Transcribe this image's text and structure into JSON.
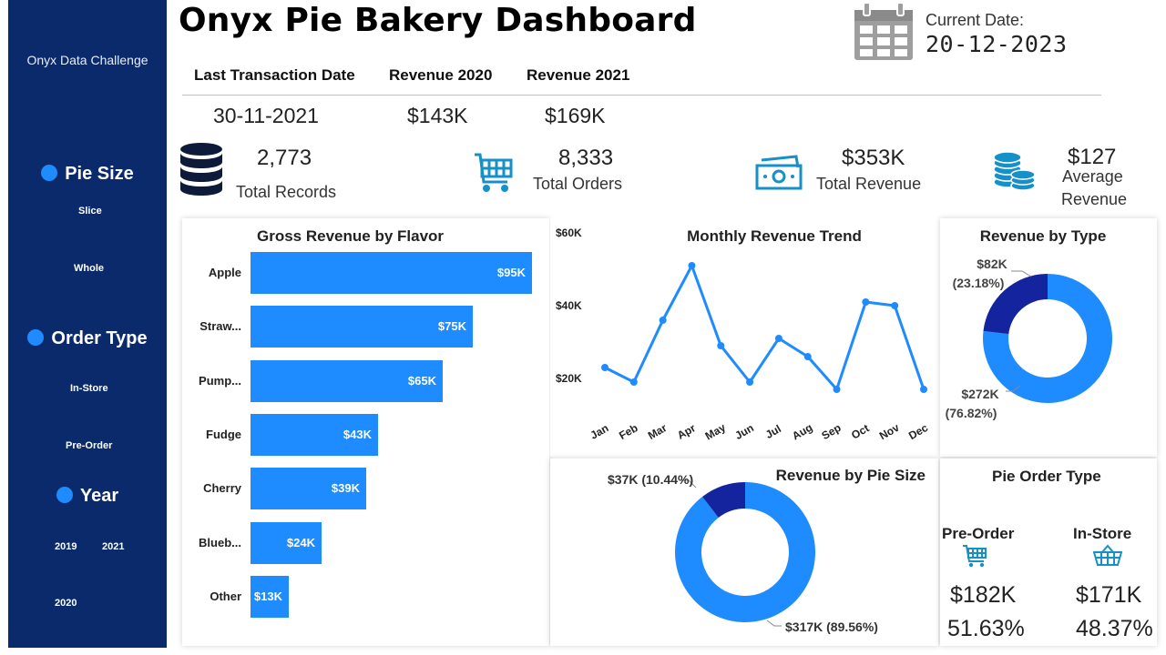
{
  "dashboard": {
    "title": "Onyx Pie Bakery Dashboard",
    "current_date_label": "Current Date:",
    "current_date": "20-12-2023"
  },
  "sidebar": {
    "title": "Onyx Data Challenge",
    "pie_size": {
      "label": "Pie Size",
      "options": [
        "Slice",
        "Whole"
      ]
    },
    "order_type": {
      "label": "Order Type",
      "options": [
        "In-Store",
        "Pre-Order"
      ]
    },
    "year": {
      "label": "Year",
      "options": [
        "2019",
        "2021",
        "2020"
      ]
    }
  },
  "header_stats": {
    "last_transaction": {
      "label": "Last Transaction Date",
      "value": "30-11-2021"
    },
    "revenue_2020": {
      "label": "Revenue 2020",
      "value": "$143K"
    },
    "revenue_2021": {
      "label": "Revenue 2021",
      "value": "$169K"
    }
  },
  "kpis": {
    "records": {
      "value": "2,773",
      "label": "Total Records",
      "icon": "database-icon"
    },
    "orders": {
      "value": "8,333",
      "label": "Total Orders",
      "icon": "cart-icon"
    },
    "revenue": {
      "value": "$353K",
      "label": "Total Revenue",
      "icon": "money-icon"
    },
    "avg": {
      "value": "$127",
      "label_line1": "Average",
      "label_line2": "Revenue",
      "icon": "coins-icon"
    }
  },
  "colors": {
    "accent": "#1e8bff",
    "dark_accent": "#14249e",
    "sidebar": "#0a2a6c"
  },
  "chart_data": [
    {
      "type": "bar",
      "title": "Gross Revenue by Flavor",
      "orientation": "horizontal",
      "categories": [
        "Apple",
        "Straw...",
        "Pump...",
        "Fudge",
        "Cherry",
        "Blueb...",
        "Other"
      ],
      "values": [
        95,
        75,
        65,
        43,
        39,
        24,
        13
      ],
      "labels": [
        "$95K",
        "$75K",
        "$65K",
        "$43K",
        "$39K",
        "$24K",
        "$13K"
      ],
      "unit": "$K"
    },
    {
      "type": "line",
      "title": "Monthly Revenue Trend",
      "x": [
        "Jan",
        "Feb",
        "Mar",
        "Apr",
        "May",
        "Jun",
        "Jul",
        "Aug",
        "Sep",
        "Oct",
        "Nov",
        "Dec"
      ],
      "y": [
        23,
        19,
        36,
        51,
        29,
        19,
        31,
        26,
        17,
        41,
        40,
        17
      ],
      "yticks": [
        "$60K",
        "$40K",
        "$20K"
      ],
      "ylim": [
        10,
        60
      ],
      "unit": "$K"
    },
    {
      "type": "pie",
      "title": "Revenue by Type",
      "slices": [
        {
          "label": "$82K",
          "pct": "(23.18%)",
          "value": 23.18,
          "color": "#14249e"
        },
        {
          "label": "$272K",
          "pct": "(76.82%)",
          "value": 76.82,
          "color": "#1e8bff"
        }
      ]
    },
    {
      "type": "pie",
      "title": "Revenue by Pie Size",
      "slices": [
        {
          "label": "$37K (10.44%)",
          "value": 10.44,
          "color": "#14249e"
        },
        {
          "label": "$317K (89.56%)",
          "value": 89.56,
          "color": "#1e8bff"
        }
      ]
    }
  ],
  "pie_order_type": {
    "title": "Pie Order Type",
    "preorder": {
      "label": "Pre-Order",
      "value": "$182K",
      "pct": "51.63%"
    },
    "instore": {
      "label": "In-Store",
      "value": "$171K",
      "pct": "48.37%"
    }
  }
}
